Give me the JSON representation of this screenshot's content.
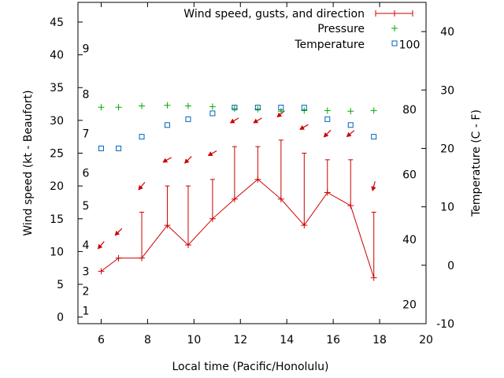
{
  "chart_data": {
    "type": "line",
    "title": "",
    "xlabel": "Local time (Pacific/Honolulu)",
    "ylabel_left": "Wind speed (kt - Beaufort)",
    "ylabel_right": "Temperature (C - F)",
    "xlim": [
      5,
      20
    ],
    "ylim_left": [
      -1,
      48
    ],
    "ylim_right": [
      -10,
      45
    ],
    "x_ticks": [
      6,
      8,
      10,
      12,
      14,
      16,
      18,
      20
    ],
    "y_ticks_left": [
      0,
      5,
      10,
      15,
      20,
      25,
      30,
      35,
      40,
      45
    ],
    "y_ticks_right": [
      -10,
      0,
      10,
      20,
      30,
      40
    ],
    "beaufort_ticks": [
      {
        "label": "1",
        "kt": 1
      },
      {
        "label": "2",
        "kt": 4
      },
      {
        "label": "3",
        "kt": 7
      },
      {
        "label": "4",
        "kt": 11
      },
      {
        "label": "5",
        "kt": 17
      },
      {
        "label": "6",
        "kt": 22
      },
      {
        "label": "7",
        "kt": 28
      },
      {
        "label": "8",
        "kt": 34
      },
      {
        "label": "9",
        "kt": 41
      }
    ],
    "fahrenheit_ticks": [
      {
        "label": "20",
        "celsius": -6.67
      },
      {
        "label": "40",
        "celsius": 4.44
      },
      {
        "label": "60",
        "celsius": 15.56
      },
      {
        "label": "80",
        "celsius": 26.67
      },
      {
        "label": "100",
        "celsius": 37.78
      }
    ],
    "legend": {
      "wind": "Wind speed, gusts, and direction",
      "pressure": "Pressure",
      "temperature": "Temperature"
    },
    "colors": {
      "wind": "#cc0000",
      "pressure": "#00aa00",
      "temperature": "#0066bb"
    },
    "series": [
      {
        "name": "Wind speed, gusts, and direction",
        "x": [
          6.0,
          6.75,
          7.75,
          8.85,
          9.75,
          10.8,
          11.75,
          12.75,
          13.75,
          14.75,
          15.75,
          16.75,
          17.75
        ],
        "values": [
          7,
          9,
          9,
          14,
          11,
          15,
          18,
          21,
          18,
          14,
          19,
          17,
          6
        ],
        "gusts": [
          7,
          9,
          16,
          20,
          20,
          21,
          26,
          26,
          27,
          25,
          24,
          24,
          16
        ],
        "direction_arrow_kt": [
          11,
          13,
          20,
          24,
          24,
          25,
          30,
          30,
          31,
          29,
          28,
          28,
          20
        ],
        "direction_deg": [
          40,
          45,
          40,
          60,
          45,
          60,
          60,
          60,
          50,
          60,
          45,
          50,
          15
        ]
      },
      {
        "name": "Pressure",
        "x": [
          6.0,
          6.75,
          7.75,
          8.85,
          9.75,
          10.8,
          11.75,
          12.75,
          13.75,
          14.75,
          15.75,
          16.75,
          17.75
        ],
        "values_kt_scale": [
          32,
          32,
          32.2,
          32.3,
          32.2,
          32.1,
          31.8,
          31.7,
          31.4,
          31.5,
          31.5,
          31.4,
          31.5
        ]
      },
      {
        "name": "Temperature",
        "x": [
          6.0,
          6.75,
          7.75,
          8.85,
          9.75,
          10.8,
          11.75,
          12.75,
          13.75,
          14.75,
          15.75,
          16.75,
          17.75
        ],
        "values": [
          20,
          20,
          22,
          24,
          25,
          26,
          27,
          27,
          27,
          27,
          25,
          24,
          22
        ]
      }
    ]
  }
}
